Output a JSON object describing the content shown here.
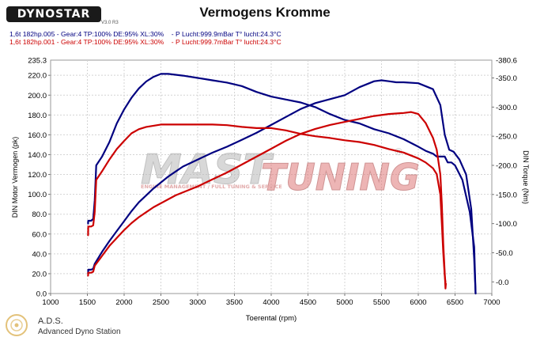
{
  "header": {
    "logo_text": "DYNOSTAR",
    "logo_subtext": "V3.0 R3",
    "title": "Vermogens Kromme"
  },
  "runs": [
    {
      "label": "1,6t 182hp.005 - Gear:4 TP:100% DE:95% XL:30%    - P Lucht:999.9mBar T° lucht:24.3°C",
      "color": "#000080"
    },
    {
      "label": "1,6t 182hp.001 - Gear:4 TP:100% DE:95% XL:30%    - P Lucht:999.7mBar T° lucht:24.3°C",
      "color": "#cc0000"
    }
  ],
  "watermark": {
    "brand_left": "MAST",
    "brand_right": "TUNING",
    "tagline": "ENGINE MANAGEMENT / FULL TUNING & SERVICE",
    "registered": "®"
  },
  "footer": {
    "title": "A.D.S.",
    "subtitle": "Advanced Dyno Station"
  },
  "chart_data": {
    "type": "line",
    "xlabel": "Toerental (rpm)",
    "ylabel_left": "DIN Motor Vermogen (pk)",
    "ylabel_right": "DIN Torque (Nm)",
    "xlim": [
      1000,
      7000
    ],
    "ylim_left": [
      0,
      235.3
    ],
    "ylim_right": [
      -20,
      380.6
    ],
    "x_ticks": [
      1000,
      1500,
      2000,
      2500,
      3000,
      3500,
      4000,
      4500,
      5000,
      5500,
      6000,
      6500,
      7000
    ],
    "y_ticks_left": [
      0.0,
      20.0,
      40.0,
      60.0,
      80.0,
      100.0,
      120.0,
      140.0,
      160.0,
      180.0,
      200.0,
      220.0
    ],
    "y_top_left_label": "235.3",
    "y_ticks_right": [
      -0.0,
      50.0,
      100.0,
      150.0,
      200.0,
      250.0,
      300.0,
      350.0
    ],
    "y_top_right_label": "380.6",
    "grid": true,
    "series": [
      {
        "run": 0,
        "quantity": "power",
        "axis": "left",
        "color": "#000080",
        "x": [
          1510,
          1512,
          1550,
          1580,
          1600,
          1700,
          1800,
          1900,
          2000,
          2100,
          2200,
          2300,
          2400,
          2500,
          2600,
          2700,
          2800,
          3000,
          3200,
          3400,
          3600,
          3800,
          4000,
          4200,
          4400,
          4600,
          4800,
          5000,
          5200,
          5400,
          5500,
          5600,
          5700,
          5800,
          6000,
          6200,
          6300,
          6360,
          6420,
          6480,
          6560,
          6650,
          6720,
          6760,
          6780
        ],
        "y": [
          20,
          24,
          24,
          25,
          30,
          42,
          53,
          63,
          73,
          83,
          92,
          99,
          106,
          112,
          118,
          123,
          128,
          135,
          142,
          148,
          155,
          162,
          170,
          178,
          186,
          192,
          196,
          200,
          208,
          214,
          215,
          214,
          213,
          213,
          212,
          206,
          190,
          160,
          145,
          143,
          135,
          120,
          85,
          35,
          0
        ]
      },
      {
        "run": 0,
        "quantity": "torque",
        "axis": "right",
        "color": "#000080",
        "x": [
          1510,
          1512,
          1550,
          1580,
          1600,
          1620,
          1700,
          1800,
          1900,
          2000,
          2100,
          2200,
          2300,
          2400,
          2500,
          2600,
          2800,
          3000,
          3200,
          3400,
          3600,
          3800,
          4000,
          4200,
          4400,
          4600,
          4800,
          5000,
          5200,
          5400,
          5600,
          5800,
          6000,
          6100,
          6200,
          6250,
          6300,
          6360,
          6400,
          6450,
          6500,
          6600,
          6700,
          6760,
          6780
        ],
        "y": [
          100,
          105,
          105,
          108,
          140,
          200,
          215,
          240,
          272,
          296,
          316,
          332,
          344,
          352,
          357,
          357,
          354,
          350,
          346,
          342,
          336,
          326,
          318,
          313,
          308,
          300,
          288,
          278,
          272,
          262,
          255,
          245,
          232,
          225,
          220,
          215,
          215,
          215,
          205,
          205,
          200,
          175,
          120,
          60,
          -20
        ]
      },
      {
        "run": 1,
        "quantity": "power",
        "axis": "left",
        "color": "#cc0000",
        "x": [
          1510,
          1512,
          1550,
          1580,
          1600,
          1700,
          1800,
          1900,
          2000,
          2100,
          2200,
          2300,
          2400,
          2500,
          2600,
          2700,
          2800,
          3000,
          3200,
          3400,
          3600,
          3800,
          4000,
          4200,
          4400,
          4600,
          4800,
          5000,
          5200,
          5400,
          5600,
          5800,
          5900,
          6000,
          6100,
          6200,
          6250,
          6300,
          6320,
          6340,
          6360,
          6370,
          6375
        ],
        "y": [
          18,
          21,
          21,
          22,
          28,
          38,
          48,
          56,
          64,
          71,
          77,
          82,
          87,
          91,
          95,
          99,
          102,
          108,
          115,
          122,
          130,
          138,
          146,
          154,
          161,
          166,
          170,
          173,
          176,
          179,
          181,
          182,
          183,
          181,
          172,
          157,
          145,
          120,
          90,
          50,
          20,
          5,
          10
        ]
      },
      {
        "run": 1,
        "quantity": "torque",
        "axis": "right",
        "color": "#cc0000",
        "x": [
          1510,
          1512,
          1550,
          1580,
          1600,
          1620,
          1700,
          1800,
          1900,
          2000,
          2100,
          2200,
          2300,
          2400,
          2500,
          2600,
          2800,
          3000,
          3200,
          3400,
          3600,
          3800,
          4000,
          4200,
          4400,
          4600,
          4800,
          5000,
          5200,
          5400,
          5600,
          5800,
          6000,
          6100,
          6200,
          6250,
          6300,
          6320,
          6340,
          6360,
          6370
        ],
        "y": [
          80,
          95,
          95,
          97,
          120,
          175,
          190,
          210,
          228,
          242,
          255,
          262,
          266,
          268,
          270,
          270,
          270,
          270,
          270,
          269,
          266,
          264,
          264,
          260,
          254,
          250,
          247,
          243,
          240,
          235,
          228,
          222,
          212,
          205,
          195,
          185,
          150,
          100,
          50,
          10,
          0
        ]
      }
    ]
  }
}
